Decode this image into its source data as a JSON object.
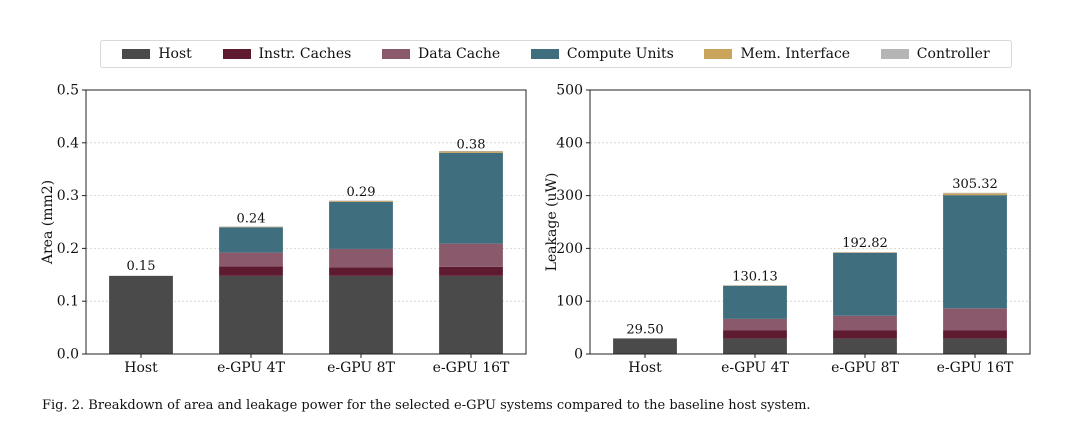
{
  "legend": [
    {
      "label": "Host",
      "color": "#4a4a4a"
    },
    {
      "label": "Instr. Caches",
      "color": "#5e1a2f"
    },
    {
      "label": "Data Cache",
      "color": "#8a5a6c"
    },
    {
      "label": "Compute Units",
      "color": "#3f6e7e"
    },
    {
      "label": "Mem. Interface",
      "color": "#c9a45a"
    },
    {
      "label": "Controller",
      "color": "#b5b5b5"
    }
  ],
  "chart_data": [
    {
      "type": "bar",
      "stacked": true,
      "categories": [
        "Host",
        "e-GPU 4T",
        "e-GPU 8T",
        "e-GPU 16T"
      ],
      "series": [
        {
          "name": "Host",
          "values": [
            0.148,
            0.148,
            0.148,
            0.148
          ]
        },
        {
          "name": "Instr. Caches",
          "values": [
            0,
            0.018,
            0.016,
            0.017
          ]
        },
        {
          "name": "Data Cache",
          "values": [
            0,
            0.026,
            0.035,
            0.044
          ]
        },
        {
          "name": "Compute Units",
          "values": [
            0,
            0.048,
            0.089,
            0.172
          ]
        },
        {
          "name": "Mem. Interface",
          "values": [
            0,
            0.001,
            0.002,
            0.003
          ]
        },
        {
          "name": "Controller",
          "values": [
            0,
            0.0005,
            0.0005,
            0.0005
          ]
        }
      ],
      "totals_labels": [
        "0.15",
        "0.24",
        "0.29",
        "0.38"
      ],
      "totals": [
        0.15,
        0.24,
        0.29,
        0.38
      ],
      "ylabel": "Area (mm2)",
      "ylim": [
        0,
        0.5
      ],
      "yticks": [
        0.0,
        0.1,
        0.2,
        0.3,
        0.4,
        0.5
      ],
      "ytick_labels": [
        "0.0",
        "0.1",
        "0.2",
        "0.3",
        "0.4",
        "0.5"
      ],
      "grid": true
    },
    {
      "type": "bar",
      "stacked": true,
      "categories": [
        "Host",
        "e-GPU 4T",
        "e-GPU 8T",
        "e-GPU 16T"
      ],
      "series": [
        {
          "name": "Host",
          "values": [
            29.5,
            29.5,
            29.5,
            29.5
          ]
        },
        {
          "name": "Instr. Caches",
          "values": [
            0,
            15,
            15,
            15
          ]
        },
        {
          "name": "Data Cache",
          "values": [
            0,
            22,
            28,
            42
          ]
        },
        {
          "name": "Compute Units",
          "values": [
            0,
            62.4,
            118.8,
            214.3
          ]
        },
        {
          "name": "Mem. Interface",
          "values": [
            0,
            1,
            1.2,
            3.5
          ]
        },
        {
          "name": "Controller",
          "values": [
            0,
            0.23,
            0.32,
            1.02
          ]
        }
      ],
      "totals_labels": [
        "29.50",
        "130.13",
        "192.82",
        "305.32"
      ],
      "totals": [
        29.5,
        130.13,
        192.82,
        305.32
      ],
      "ylabel": "Leakage (uW)",
      "ylim": [
        0,
        500
      ],
      "yticks": [
        0,
        100,
        200,
        300,
        400,
        500
      ],
      "ytick_labels": [
        "0",
        "100",
        "200",
        "300",
        "400",
        "500"
      ],
      "grid": true
    }
  ],
  "caption": "Fig. 2.  Breakdown of area and leakage power for the selected e-GPU systems compared to the baseline host system."
}
